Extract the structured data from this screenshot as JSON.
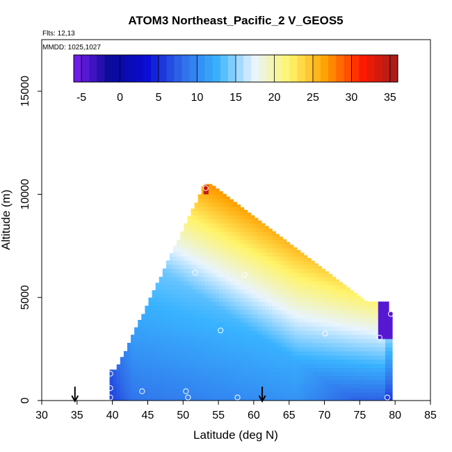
{
  "chart_data": {
    "type": "heatmap",
    "title": "ATOM3 Northeast_Pacific_2 V_GEOS5",
    "subtitle_flights": "Flts: 12,13",
    "subtitle_dates": "MMDD: 1025,1027",
    "xlabel": "Latitude (deg N)",
    "ylabel": "Altitude (m)",
    "xlim": [
      30,
      85
    ],
    "ylim": [
      0,
      17500
    ],
    "x_ticks": [
      "30",
      "35",
      "40",
      "45",
      "50",
      "55",
      "60",
      "65",
      "70",
      "75",
      "80",
      "85"
    ],
    "y_ticks": [
      "0",
      "5000",
      "10000",
      "15000"
    ],
    "colorbar": {
      "range": [
        -6,
        36
      ],
      "ticks": [
        "-5",
        "0",
        "5",
        "10",
        "15",
        "20",
        "25",
        "30",
        "35"
      ],
      "colors": [
        "#7a1ff0",
        "#0a0a96",
        "#0b0bd2",
        "#2f6be8",
        "#39b3ff",
        "#e8f4ff",
        "#fff46a",
        "#ffa000",
        "#ff1a00",
        "#a01d1d"
      ]
    },
    "flight_markers_lat": [
      34.7,
      61.2
    ],
    "sample_points": [
      {
        "lat": 39.7,
        "alt": 1300
      },
      {
        "lat": 39.7,
        "alt": 600
      },
      {
        "lat": 39.7,
        "alt": 150
      },
      {
        "lat": 44.2,
        "alt": 450
      },
      {
        "lat": 50.4,
        "alt": 450
      },
      {
        "lat": 50.7,
        "alt": 150
      },
      {
        "lat": 57.7,
        "alt": 150
      },
      {
        "lat": 53.2,
        "alt": 10300
      },
      {
        "lat": 51.7,
        "alt": 6200
      },
      {
        "lat": 58.7,
        "alt": 6100
      },
      {
        "lat": 55.3,
        "alt": 3400
      },
      {
        "lat": 70.1,
        "alt": 3250
      },
      {
        "lat": 77.8,
        "alt": 3050
      },
      {
        "lat": 79.4,
        "alt": 4200
      },
      {
        "lat": 78.9,
        "alt": 150
      }
    ]
  }
}
